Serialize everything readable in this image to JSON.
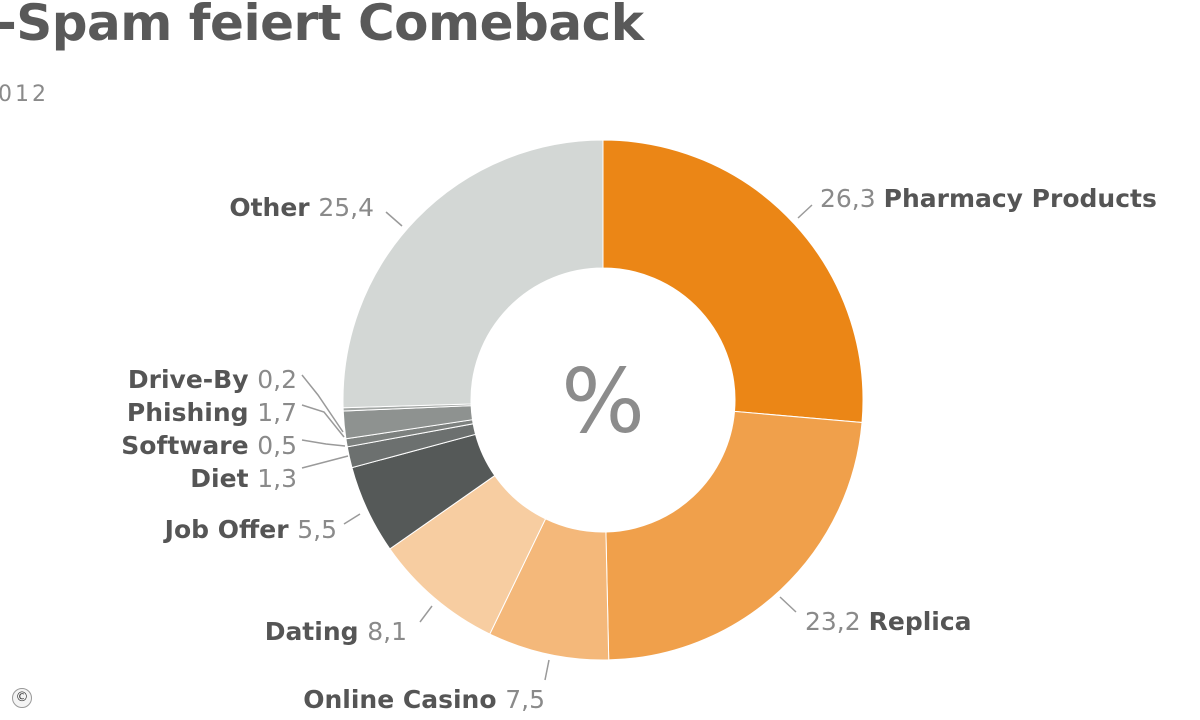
{
  "header": {
    "title": "-Spam feiert Comeback",
    "subtitle": "012"
  },
  "copyright_symbol": "©",
  "chart_data": {
    "type": "pie",
    "donut": true,
    "center_label": "%",
    "slices": [
      {
        "name": "Pharmacy Products",
        "value": 26.3,
        "value_label": "26,3",
        "color": "#eb8616"
      },
      {
        "name": "Replica",
        "value": 23.2,
        "value_label": "23,2",
        "color": "#f0a04b"
      },
      {
        "name": "Online Casino",
        "value": 7.5,
        "value_label": "7,5",
        "color": "#f4b87a"
      },
      {
        "name": "Dating",
        "value": 8.1,
        "value_label": "8,1",
        "color": "#f7cda1"
      },
      {
        "name": "Job Offer",
        "value": 5.5,
        "value_label": "5,5",
        "color": "#555958"
      },
      {
        "name": "Diet",
        "value": 1.3,
        "value_label": "1,3",
        "color": "#6c706f"
      },
      {
        "name": "Software",
        "value": 0.5,
        "value_label": "0,5",
        "color": "#7d817f"
      },
      {
        "name": "Phishing",
        "value": 1.7,
        "value_label": "1,7",
        "color": "#8e9290"
      },
      {
        "name": "Drive-By",
        "value": 0.2,
        "value_label": "0,2",
        "color": "#a3a7a5"
      },
      {
        "name": "Other",
        "value": 25.4,
        "value_label": "25,4",
        "color": "#d3d7d5"
      }
    ]
  }
}
